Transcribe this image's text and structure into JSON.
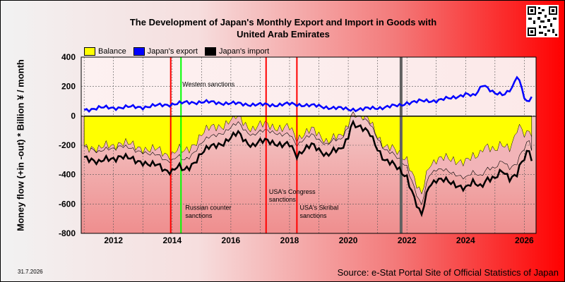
{
  "title_line1": "The Development of Japan's Monthly Export and Import in Goods with",
  "title_line2": "United Arab Emirates",
  "legend": [
    {
      "label": "Balance",
      "color": "#ffff00"
    },
    {
      "label": "Japan's export",
      "color": "#0000ff"
    },
    {
      "label": "Japan's import",
      "color": "#000000"
    }
  ],
  "ylabel": "Money flow (+in -out) * Billion ¥ / month",
  "date_label": "31.7.2026",
  "source": "Source: e-Stat Portal Site of Official Statistics of Japan",
  "icons": {
    "qr": "qr-code-icon"
  },
  "chart_data": {
    "type": "line",
    "title": "The Development of Japan's Monthly Export and Import in Goods with United Arab Emirates",
    "ylabel": "Money flow (+in -out) * Billion ¥ / month",
    "xlim": [
      2010.9,
      2026.4
    ],
    "ylim": [
      -800,
      400
    ],
    "yticks": [
      400,
      200,
      0,
      -200,
      -400,
      -600,
      -800
    ],
    "xticks": [
      2012,
      2014,
      2016,
      2018,
      2020,
      2022,
      2024,
      2026
    ],
    "grid": true,
    "legend_position": "top-left",
    "series": [
      {
        "name": "Japan's export",
        "color": "#0000ff",
        "points": [
          [
            2011.0,
            40
          ],
          [
            2011.5,
            55
          ],
          [
            2012.0,
            55
          ],
          [
            2012.5,
            60
          ],
          [
            2013.0,
            60
          ],
          [
            2013.5,
            70
          ],
          [
            2014.0,
            80
          ],
          [
            2014.5,
            90
          ],
          [
            2015.0,
            95
          ],
          [
            2015.5,
            90
          ],
          [
            2016.0,
            85
          ],
          [
            2016.5,
            80
          ],
          [
            2017.0,
            75
          ],
          [
            2017.5,
            75
          ],
          [
            2018.0,
            80
          ],
          [
            2018.5,
            75
          ],
          [
            2019.0,
            65
          ],
          [
            2019.5,
            55
          ],
          [
            2020.0,
            45
          ],
          [
            2020.5,
            45
          ],
          [
            2021.0,
            55
          ],
          [
            2021.5,
            65
          ],
          [
            2021.75,
            70
          ],
          [
            2022.0,
            90
          ],
          [
            2022.5,
            100
          ],
          [
            2023.0,
            105
          ],
          [
            2023.5,
            120
          ],
          [
            2024.0,
            150
          ],
          [
            2024.3,
            130
          ],
          [
            2024.6,
            220
          ],
          [
            2025.0,
            150
          ],
          [
            2025.3,
            140
          ],
          [
            2025.6,
            200
          ],
          [
            2025.75,
            275
          ],
          [
            2025.9,
            200
          ],
          [
            2026.05,
            80
          ],
          [
            2026.2,
            110
          ],
          [
            2026.3,
            150
          ]
        ]
      },
      {
        "name": "Japan's import",
        "color": "#000000",
        "points": [
          [
            2011.0,
            -280
          ],
          [
            2011.25,
            -290
          ],
          [
            2011.5,
            -320
          ],
          [
            2011.75,
            -300
          ],
          [
            2012.0,
            -290
          ],
          [
            2012.25,
            -270
          ],
          [
            2012.5,
            -290
          ],
          [
            2012.75,
            -310
          ],
          [
            2013.0,
            -310
          ],
          [
            2013.25,
            -330
          ],
          [
            2013.5,
            -340
          ],
          [
            2013.75,
            -370
          ],
          [
            2014.0,
            -370
          ],
          [
            2014.2,
            -340
          ],
          [
            2014.4,
            -380
          ],
          [
            2014.6,
            -350
          ],
          [
            2014.8,
            -300
          ],
          [
            2015.0,
            -250
          ],
          [
            2015.25,
            -220
          ],
          [
            2015.5,
            -200
          ],
          [
            2015.75,
            -180
          ],
          [
            2016.0,
            -150
          ],
          [
            2016.25,
            -120
          ],
          [
            2016.5,
            -170
          ],
          [
            2016.75,
            -200
          ],
          [
            2017.0,
            -180
          ],
          [
            2017.25,
            -170
          ],
          [
            2017.5,
            -180
          ],
          [
            2017.75,
            -200
          ],
          [
            2018.0,
            -200
          ],
          [
            2018.25,
            -270
          ],
          [
            2018.5,
            -220
          ],
          [
            2018.75,
            -200
          ],
          [
            2019.0,
            -240
          ],
          [
            2019.25,
            -260
          ],
          [
            2019.5,
            -230
          ],
          [
            2019.75,
            -240
          ],
          [
            2020.0,
            -150
          ],
          [
            2020.1,
            -40
          ],
          [
            2020.3,
            -60
          ],
          [
            2020.5,
            -90
          ],
          [
            2020.75,
            -130
          ],
          [
            2021.0,
            -220
          ],
          [
            2021.25,
            -300
          ],
          [
            2021.5,
            -330
          ],
          [
            2021.75,
            -370
          ],
          [
            2022.0,
            -410
          ],
          [
            2022.25,
            -560
          ],
          [
            2022.4,
            -650
          ],
          [
            2022.5,
            -680
          ],
          [
            2022.75,
            -470
          ],
          [
            2023.0,
            -430
          ],
          [
            2023.25,
            -440
          ],
          [
            2023.5,
            -460
          ],
          [
            2023.75,
            -470
          ],
          [
            2024.0,
            -490
          ],
          [
            2024.25,
            -460
          ],
          [
            2024.5,
            -480
          ],
          [
            2024.75,
            -420
          ],
          [
            2025.0,
            -430
          ],
          [
            2025.25,
            -380
          ],
          [
            2025.5,
            -420
          ],
          [
            2025.75,
            -390
          ],
          [
            2025.9,
            -320
          ],
          [
            2026.05,
            -290
          ],
          [
            2026.15,
            -220
          ],
          [
            2026.3,
            -350
          ]
        ]
      }
    ],
    "balance": {
      "name": "Balance",
      "fill": "#ffff00",
      "description": "export minus import, filled to zero line"
    },
    "vertical_lines": [
      {
        "x": 2013.95,
        "color": "#ff0000"
      },
      {
        "x": 2014.3,
        "color": "#00ff00"
      },
      {
        "x": 2017.2,
        "color": "#ff0000"
      },
      {
        "x": 2018.25,
        "color": "#ff0000"
      },
      {
        "x": 2021.8,
        "color": "#606060"
      }
    ],
    "annotations": [
      {
        "text": "Western sanctions",
        "x": 2014.3,
        "y": 200
      },
      {
        "text": "Russian counter",
        "x": 2014.4,
        "y": -640
      },
      {
        "text": "sanctions",
        "x": 2014.4,
        "y": -695
      },
      {
        "text": "USA's Congress",
        "x": 2017.25,
        "y": -530
      },
      {
        "text": "sanctions",
        "x": 2017.25,
        "y": -585
      },
      {
        "text": "USA's Skribal",
        "x": 2018.3,
        "y": -640
      },
      {
        "text": "sanctions",
        "x": 2018.3,
        "y": -695
      }
    ]
  }
}
